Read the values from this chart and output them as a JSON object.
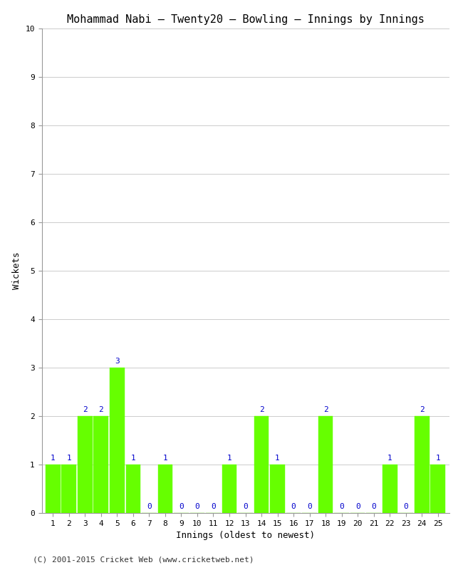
{
  "title": "Mohammad Nabi – Twenty20 – Bowling – Innings by Innings",
  "xlabel": "Innings (oldest to newest)",
  "ylabel": "Wickets",
  "footer": "(C) 2001-2015 Cricket Web (www.cricketweb.net)",
  "innings": [
    1,
    2,
    3,
    4,
    5,
    6,
    7,
    8,
    9,
    10,
    11,
    12,
    13,
    14,
    15,
    16,
    17,
    18,
    19,
    20,
    21,
    22,
    23,
    24,
    25
  ],
  "wickets": [
    1,
    1,
    2,
    2,
    3,
    1,
    0,
    1,
    0,
    0,
    0,
    1,
    0,
    2,
    1,
    0,
    0,
    2,
    0,
    0,
    0,
    1,
    0,
    2,
    1
  ],
  "bar_color": "#66ff00",
  "bar_edge_color": "#66ff00",
  "label_color": "#0000cc",
  "background_color": "#ffffff",
  "plot_background_color": "#ffffff",
  "ylim": [
    0,
    10
  ],
  "yticks": [
    0,
    1,
    2,
    3,
    4,
    5,
    6,
    7,
    8,
    9,
    10
  ],
  "title_fontsize": 11,
  "axis_label_fontsize": 9,
  "tick_fontsize": 8,
  "label_fontsize": 8,
  "footer_fontsize": 8
}
